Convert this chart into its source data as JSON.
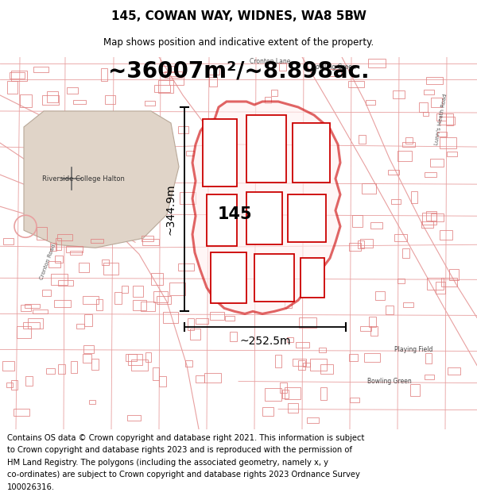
{
  "title": "145, COWAN WAY, WIDNES, WA8 5BW",
  "subtitle": "Map shows position and indicative extent of the property.",
  "area_text": "~36007m²/~8.898ac.",
  "label_145": "145",
  "dim_height": "~344.9m",
  "dim_width": "~252.5m",
  "footer_line1": "Contains OS data © Crown copyright and database right 2021. This information is subject",
  "footer_line2": "to Crown copyright and database rights 2023 and is reproduced with the permission of",
  "footer_line3": "HM Land Registry. The polygons (including the associated geometry, namely x, y",
  "footer_line4": "co-ordinates) are subject to Crown copyright and database rights 2023 Ordnance Survey",
  "footer_line5": "100026316.",
  "highlight_color": "#cc0000",
  "bg_color": "#f8f3ee",
  "college_color": "#e0d4c8",
  "road_color": "#e8a0a0",
  "title_fontsize": 11,
  "subtitle_fontsize": 8.5,
  "area_fontsize": 20,
  "dim_fontsize": 10,
  "label_fontsize": 15,
  "footer_fontsize": 7.2
}
